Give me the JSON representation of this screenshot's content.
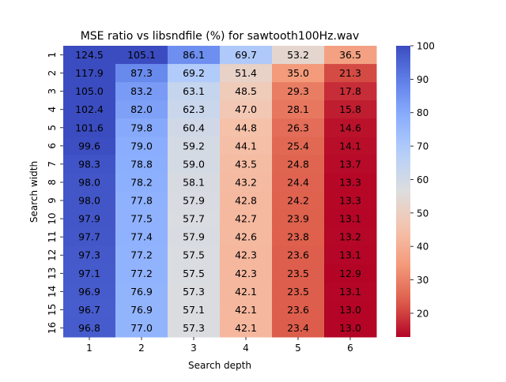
{
  "chart_data": {
    "type": "heatmap",
    "title": "MSE ratio vs libsndfile (%) for sawtooth100Hz.wav",
    "xlabel": "Search depth",
    "ylabel": "Search width",
    "x_categories": [
      "1",
      "2",
      "3",
      "4",
      "5",
      "6"
    ],
    "y_categories": [
      "1",
      "2",
      "3",
      "4",
      "5",
      "6",
      "7",
      "8",
      "9",
      "10",
      "11",
      "12",
      "13",
      "14",
      "15",
      "16"
    ],
    "values": [
      [
        124.5,
        105.1,
        86.1,
        69.7,
        53.2,
        36.5
      ],
      [
        117.9,
        87.3,
        69.2,
        51.4,
        35.0,
        21.3
      ],
      [
        105.0,
        83.2,
        63.1,
        48.5,
        29.3,
        17.8
      ],
      [
        102.4,
        82.0,
        62.3,
        47.0,
        28.1,
        15.8
      ],
      [
        101.6,
        79.8,
        60.4,
        44.8,
        26.3,
        14.6
      ],
      [
        99.6,
        79.0,
        59.2,
        44.1,
        25.4,
        14.1
      ],
      [
        98.3,
        78.8,
        59.0,
        43.5,
        24.8,
        13.7
      ],
      [
        98.0,
        78.2,
        58.1,
        43.2,
        24.4,
        13.3
      ],
      [
        98.0,
        77.8,
        57.9,
        42.8,
        24.2,
        13.3
      ],
      [
        97.9,
        77.5,
        57.7,
        42.7,
        23.9,
        13.1
      ],
      [
        97.7,
        77.4,
        57.9,
        42.6,
        23.8,
        13.2
      ],
      [
        97.3,
        77.2,
        57.5,
        42.3,
        23.6,
        13.1
      ],
      [
        97.1,
        77.2,
        57.5,
        42.3,
        23.5,
        12.9
      ],
      [
        96.9,
        76.9,
        57.3,
        42.1,
        23.5,
        13.1
      ],
      [
        96.7,
        76.9,
        57.1,
        42.1,
        23.6,
        13.0
      ],
      [
        96.8,
        77.0,
        57.3,
        42.1,
        23.4,
        13.0
      ]
    ],
    "colorscale": "coolwarm",
    "vmin": 12.9,
    "vmax": 100,
    "colorbar_ticks": [
      20,
      30,
      40,
      50,
      60,
      70,
      80,
      90,
      100
    ],
    "legend_position": "right"
  }
}
